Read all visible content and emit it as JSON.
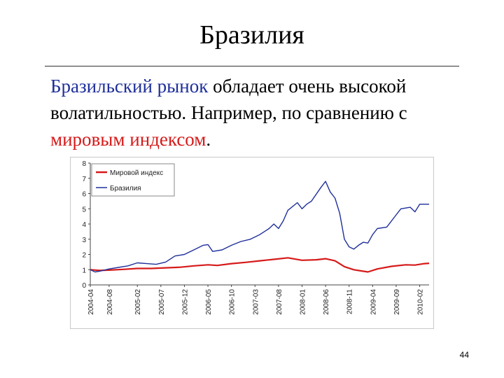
{
  "slide": {
    "title": "Бразилия",
    "text_segments": [
      {
        "text": "Бразильский рынок",
        "color": "blue"
      },
      {
        "text": " обладает очень высокой волатильностью. Например, по сравнению с ",
        "color": "black"
      },
      {
        "text": "мировым индексом",
        "color": "red"
      },
      {
        "text": ".",
        "color": "black"
      }
    ],
    "page_number": "44"
  },
  "chart_data": {
    "type": "line",
    "title": "",
    "xlabel": "",
    "ylabel": "",
    "ylim": [
      0,
      8
    ],
    "y_ticks": [
      "0",
      "1",
      "2",
      "3",
      "4",
      "5",
      "6",
      "7",
      "8"
    ],
    "grid": false,
    "legend_position": "top-left",
    "x_ticks": [
      "2004-04",
      "2004-08",
      "2005-02",
      "2005-07",
      "2005-12",
      "2006-05",
      "2006-10",
      "2007-03",
      "2007-08",
      "2008-01",
      "2008-06",
      "2008-11",
      "2009-04",
      "2009-09",
      "2010-02"
    ],
    "x_range": [
      "2004-04",
      "2010-04"
    ],
    "series": [
      {
        "name": "Мировой индекс",
        "color": "#d61a1a",
        "points": [
          [
            "2004-04",
            1.0
          ],
          [
            "2004-06",
            0.95
          ],
          [
            "2004-08",
            0.97
          ],
          [
            "2004-11",
            1.02
          ],
          [
            "2005-02",
            1.08
          ],
          [
            "2005-05",
            1.08
          ],
          [
            "2005-08",
            1.12
          ],
          [
            "2005-11",
            1.16
          ],
          [
            "2006-02",
            1.25
          ],
          [
            "2006-05",
            1.32
          ],
          [
            "2006-07",
            1.28
          ],
          [
            "2006-10",
            1.4
          ],
          [
            "2007-01",
            1.48
          ],
          [
            "2007-04",
            1.58
          ],
          [
            "2007-07",
            1.68
          ],
          [
            "2007-10",
            1.78
          ],
          [
            "2008-01",
            1.62
          ],
          [
            "2008-04",
            1.65
          ],
          [
            "2008-06",
            1.72
          ],
          [
            "2008-08",
            1.58
          ],
          [
            "2008-10",
            1.2
          ],
          [
            "2008-12",
            1.0
          ],
          [
            "2009-03",
            0.85
          ],
          [
            "2009-05",
            1.05
          ],
          [
            "2009-08",
            1.22
          ],
          [
            "2009-11",
            1.32
          ],
          [
            "2010-01",
            1.3
          ],
          [
            "2010-03",
            1.4
          ],
          [
            "2010-04",
            1.42
          ]
        ]
      },
      {
        "name": "Бразилия",
        "color": "#1f2f9a",
        "points": [
          [
            "2004-04",
            1.0
          ],
          [
            "2004-05",
            0.85
          ],
          [
            "2004-06",
            0.9
          ],
          [
            "2004-08",
            1.05
          ],
          [
            "2004-10",
            1.15
          ],
          [
            "2004-12",
            1.25
          ],
          [
            "2005-02",
            1.45
          ],
          [
            "2005-04",
            1.4
          ],
          [
            "2005-06",
            1.35
          ],
          [
            "2005-08",
            1.5
          ],
          [
            "2005-10",
            1.9
          ],
          [
            "2005-12",
            2.0
          ],
          [
            "2006-02",
            2.3
          ],
          [
            "2006-04",
            2.6
          ],
          [
            "2006-05",
            2.65
          ],
          [
            "2006-06",
            2.2
          ],
          [
            "2006-08",
            2.3
          ],
          [
            "2006-10",
            2.6
          ],
          [
            "2006-12",
            2.85
          ],
          [
            "2007-02",
            3.0
          ],
          [
            "2007-04",
            3.3
          ],
          [
            "2007-06",
            3.7
          ],
          [
            "2007-07",
            4.0
          ],
          [
            "2007-08",
            3.7
          ],
          [
            "2007-09",
            4.2
          ],
          [
            "2007-10",
            4.9
          ],
          [
            "2007-12",
            5.4
          ],
          [
            "2008-01",
            5.0
          ],
          [
            "2008-02",
            5.3
          ],
          [
            "2008-03",
            5.5
          ],
          [
            "2008-05",
            6.4
          ],
          [
            "2008-06",
            6.8
          ],
          [
            "2008-07",
            6.1
          ],
          [
            "2008-08",
            5.7
          ],
          [
            "2008-09",
            4.7
          ],
          [
            "2008-10",
            3.0
          ],
          [
            "2008-11",
            2.5
          ],
          [
            "2008-12",
            2.35
          ],
          [
            "2009-01",
            2.6
          ],
          [
            "2009-02",
            2.8
          ],
          [
            "2009-03",
            2.75
          ],
          [
            "2009-04",
            3.3
          ],
          [
            "2009-05",
            3.7
          ],
          [
            "2009-07",
            3.8
          ],
          [
            "2009-09",
            4.6
          ],
          [
            "2009-10",
            5.0
          ],
          [
            "2009-12",
            5.1
          ],
          [
            "2010-01",
            4.8
          ],
          [
            "2010-02",
            5.3
          ],
          [
            "2010-04",
            5.3
          ]
        ]
      }
    ]
  }
}
